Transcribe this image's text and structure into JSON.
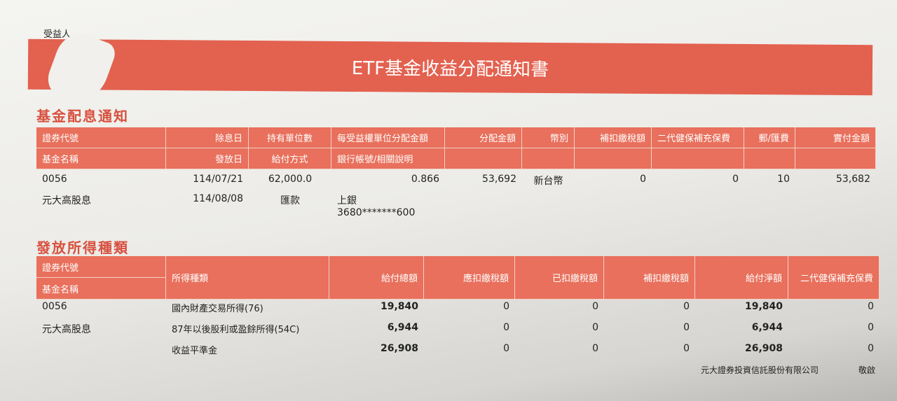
{
  "recipient_label": "受益人",
  "title": "ETF基金收益分配通知書",
  "section1": {
    "title": "基金配息通知",
    "header_row1": [
      "證券代號",
      "除息日",
      "持有單位數",
      "每受益權單位分配金額",
      "分配金額",
      "幣別",
      "補扣繳稅額",
      "二代健保補充保費",
      "郵/匯費",
      "實付金額"
    ],
    "header_row2": [
      "基金名稱",
      "發放日",
      "給付方式",
      "銀行帳號/相關說明",
      "",
      "",
      "",
      "",
      "",
      ""
    ],
    "row1": [
      "0056",
      "114/07/21",
      "62,000.0",
      "0.866",
      "53,692",
      "新台幣",
      "0",
      "0",
      "10",
      "53,682"
    ],
    "row2": [
      "元大高股息",
      "114/08/08",
      "匯款",
      "上銀　3680*******600",
      "",
      "",
      "",
      "",
      "",
      ""
    ]
  },
  "section2": {
    "title": "發放所得種類",
    "header_code": "證券代號",
    "header_name": "基金名稱",
    "headers": [
      "所得種類",
      "給付總額",
      "應扣繳稅額",
      "已扣繳稅額",
      "補扣繳稅額",
      "給付淨額",
      "二代健保補充保費"
    ],
    "rows": [
      {
        "col1": "0056",
        "type": "國內財產交易所得(76)",
        "vals": [
          "19,840",
          "0",
          "0",
          "0",
          "19,840",
          "0"
        ]
      },
      {
        "col1": "元大高股息",
        "type": "87年以後股利或盈餘所得(54C)",
        "vals": [
          "6,944",
          "0",
          "0",
          "0",
          "6,944",
          "0"
        ]
      },
      {
        "col1": "",
        "type": "收益平準金",
        "vals": [
          "26,908",
          "0",
          "0",
          "0",
          "26,908",
          "0"
        ]
      }
    ]
  },
  "footer": {
    "company": "元大證券投資信託股份有限公司",
    "closing": "敬啟"
  }
}
